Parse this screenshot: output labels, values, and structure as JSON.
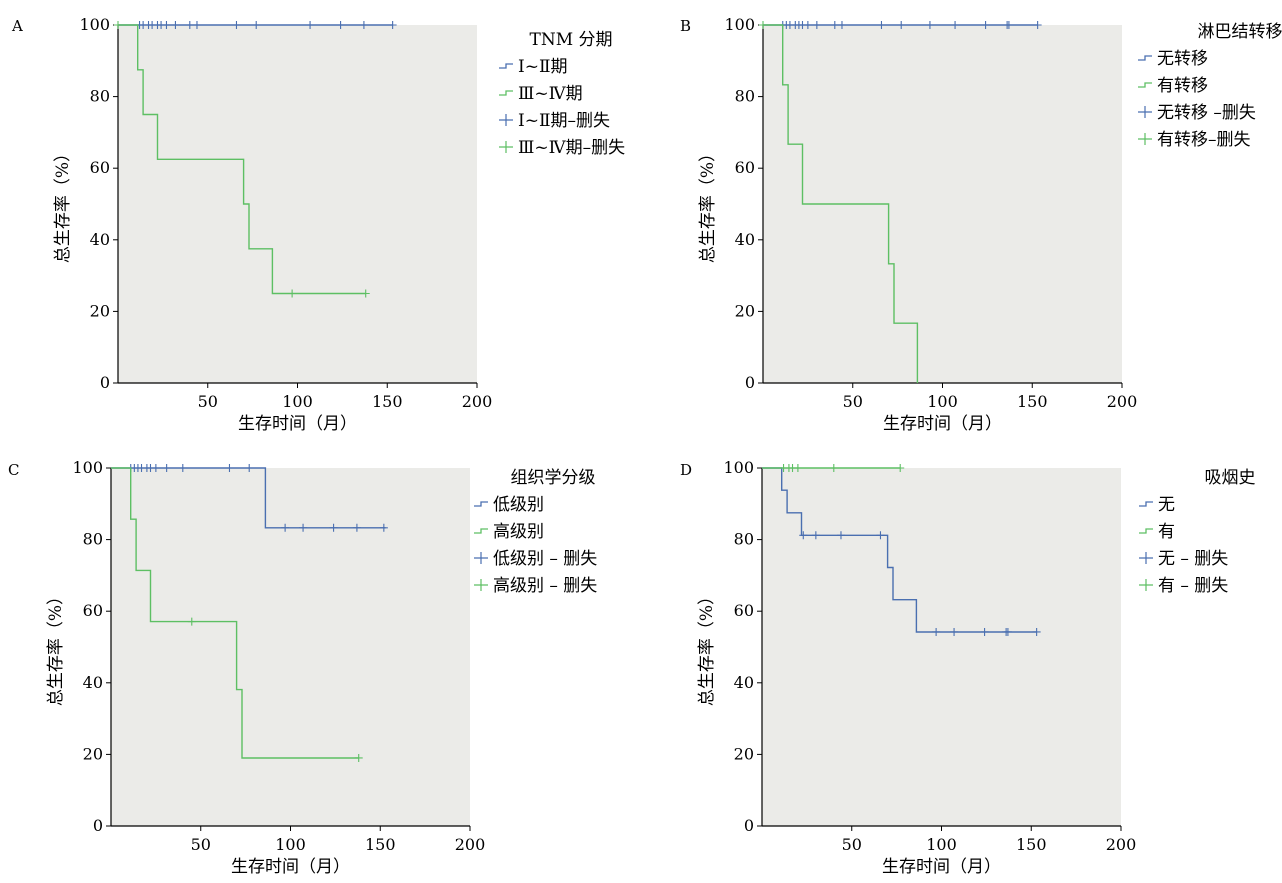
{
  "chart_data": [
    {
      "panel": "A",
      "type": "line",
      "chart_kind": "kaplan-meier",
      "xlabel": "生存时间（月）",
      "ylabel": "总生存率（%）",
      "xlim": [
        0,
        200
      ],
      "ylim": [
        0,
        100
      ],
      "xticks": [
        50,
        100,
        150,
        200
      ],
      "yticks": [
        0,
        20,
        40,
        60,
        80,
        100
      ],
      "grid": false,
      "legend_position": "right",
      "legend_title": "TNM 分期",
      "colors": {
        "series1": "#4a6fb0",
        "series2": "#5dbf63"
      },
      "series": [
        {
          "name": "Ⅰ~Ⅱ期",
          "steps": [
            [
              0,
              100
            ],
            [
              153,
              100
            ]
          ],
          "censor_x": [
            12,
            14,
            17,
            19,
            22,
            24,
            27,
            32,
            40,
            44,
            66,
            77,
            107,
            124,
            137,
            153
          ],
          "censor_name": "Ⅰ~Ⅱ期–删失"
        },
        {
          "name": "Ⅲ~Ⅳ期",
          "steps": [
            [
              0,
              100
            ],
            [
              11,
              100
            ],
            [
              11,
              87.5
            ],
            [
              14,
              87.5
            ],
            [
              14,
              75
            ],
            [
              22,
              75
            ],
            [
              22,
              62.5
            ],
            [
              70,
              62.5
            ],
            [
              70,
              50
            ],
            [
              73,
              50
            ],
            [
              73,
              37.5
            ],
            [
              86,
              37.5
            ],
            [
              86,
              25
            ],
            [
              138,
              25
            ]
          ],
          "censor_x": [
            0,
            97,
            138
          ],
          "censor_y": [
            100,
            25,
            25
          ],
          "censor_name": "Ⅲ~Ⅳ期–删失"
        }
      ]
    },
    {
      "panel": "B",
      "type": "line",
      "chart_kind": "kaplan-meier",
      "xlabel": "生存时间（月）",
      "ylabel": "总生存率（%）",
      "xlim": [
        0,
        200
      ],
      "ylim": [
        0,
        100
      ],
      "xticks": [
        50,
        100,
        150,
        200
      ],
      "yticks": [
        0,
        20,
        40,
        60,
        80,
        100
      ],
      "grid": false,
      "legend_position": "right",
      "legend_title": "淋巴结转移",
      "colors": {
        "series1": "#4a6fb0",
        "series2": "#5dbf63"
      },
      "series": [
        {
          "name": "无转移",
          "steps": [
            [
              0,
              100
            ],
            [
              153,
              100
            ]
          ],
          "censor_x": [
            11,
            13,
            15,
            18,
            20,
            22,
            25,
            30,
            40,
            44,
            66,
            77,
            93,
            107,
            124,
            136,
            137,
            153
          ],
          "censor_name": "无转移 –删失"
        },
        {
          "name": "有转移",
          "steps": [
            [
              0,
              100
            ],
            [
              11,
              100
            ],
            [
              11,
              83.3
            ],
            [
              14,
              83.3
            ],
            [
              14,
              66.7
            ],
            [
              22,
              66.7
            ],
            [
              22,
              50
            ],
            [
              70,
              50
            ],
            [
              70,
              33.3
            ],
            [
              73,
              33.3
            ],
            [
              73,
              16.7
            ],
            [
              86,
              16.7
            ],
            [
              86,
              0
            ]
          ],
          "censor_x": [
            0
          ],
          "censor_y": [
            100
          ],
          "censor_name": "有转移–删失"
        }
      ]
    },
    {
      "panel": "C",
      "type": "line",
      "chart_kind": "kaplan-meier",
      "xlabel": "生存时间（月）",
      "ylabel": "总生存率（%）",
      "xlim": [
        0,
        200
      ],
      "ylim": [
        0,
        100
      ],
      "xticks": [
        50,
        100,
        150,
        200
      ],
      "yticks": [
        0,
        20,
        40,
        60,
        80,
        100
      ],
      "grid": false,
      "legend_position": "right",
      "legend_title": "组织学分级",
      "colors": {
        "series1": "#4a6fb0",
        "series2": "#5dbf63"
      },
      "series": [
        {
          "name": "低级别",
          "steps": [
            [
              0,
              100
            ],
            [
              86,
              100
            ],
            [
              86,
              83.3
            ],
            [
              153,
              83.3
            ]
          ],
          "censor_x": [
            11,
            13,
            15,
            17,
            20,
            22,
            25,
            31,
            40,
            66,
            77,
            97,
            107,
            124,
            137,
            152
          ],
          "censor_y": [
            100,
            100,
            100,
            100,
            100,
            100,
            100,
            100,
            100,
            100,
            100,
            83.3,
            83.3,
            83.3,
            83.3,
            83.3
          ],
          "censor_name": "低级别 – 删失"
        },
        {
          "name": "高级别",
          "steps": [
            [
              0,
              100
            ],
            [
              11,
              100
            ],
            [
              11,
              85.7
            ],
            [
              14,
              85.7
            ],
            [
              14,
              71.4
            ],
            [
              22,
              71.4
            ],
            [
              22,
              57.1
            ],
            [
              70,
              57.1
            ],
            [
              70,
              38.1
            ],
            [
              73,
              38.1
            ],
            [
              73,
              19
            ],
            [
              138,
              19
            ]
          ],
          "censor_x": [
            45,
            138
          ],
          "censor_y": [
            57.1,
            19
          ],
          "censor_name": "高级别 – 删失"
        }
      ]
    },
    {
      "panel": "D",
      "type": "line",
      "chart_kind": "kaplan-meier",
      "xlabel": "生存时间（月）",
      "ylabel": "总生存率（%）",
      "xlim": [
        0,
        200
      ],
      "ylim": [
        0,
        100
      ],
      "xticks": [
        50,
        100,
        150,
        200
      ],
      "yticks": [
        0,
        20,
        40,
        60,
        80,
        100
      ],
      "grid": false,
      "legend_position": "right",
      "legend_title": "吸烟史",
      "colors": {
        "series1": "#4a6fb0",
        "series2": "#5dbf63"
      },
      "series": [
        {
          "name": "无",
          "steps": [
            [
              0,
              100
            ],
            [
              11,
              100
            ],
            [
              11,
              93.8
            ],
            [
              14,
              93.8
            ],
            [
              14,
              87.5
            ],
            [
              22,
              87.5
            ],
            [
              22,
              81.2
            ],
            [
              70,
              81.2
            ],
            [
              70,
              72.2
            ],
            [
              73,
              72.2
            ],
            [
              73,
              63.2
            ],
            [
              86,
              63.2
            ],
            [
              86,
              54.2
            ],
            [
              153,
              54.2
            ]
          ],
          "censor_x": [
            23,
            30,
            44,
            66,
            97,
            107,
            124,
            136,
            137,
            153
          ],
          "censor_y": [
            81.2,
            81.2,
            81.2,
            81.2,
            54.2,
            54.2,
            54.2,
            54.2,
            54.2,
            54.2
          ],
          "censor_name": "无 – 删失"
        },
        {
          "name": "有",
          "steps": [
            [
              0,
              100
            ],
            [
              77,
              100
            ]
          ],
          "censor_x": [
            12,
            15,
            17,
            20,
            40,
            77
          ],
          "censor_name": "有 – 删失"
        }
      ]
    }
  ]
}
